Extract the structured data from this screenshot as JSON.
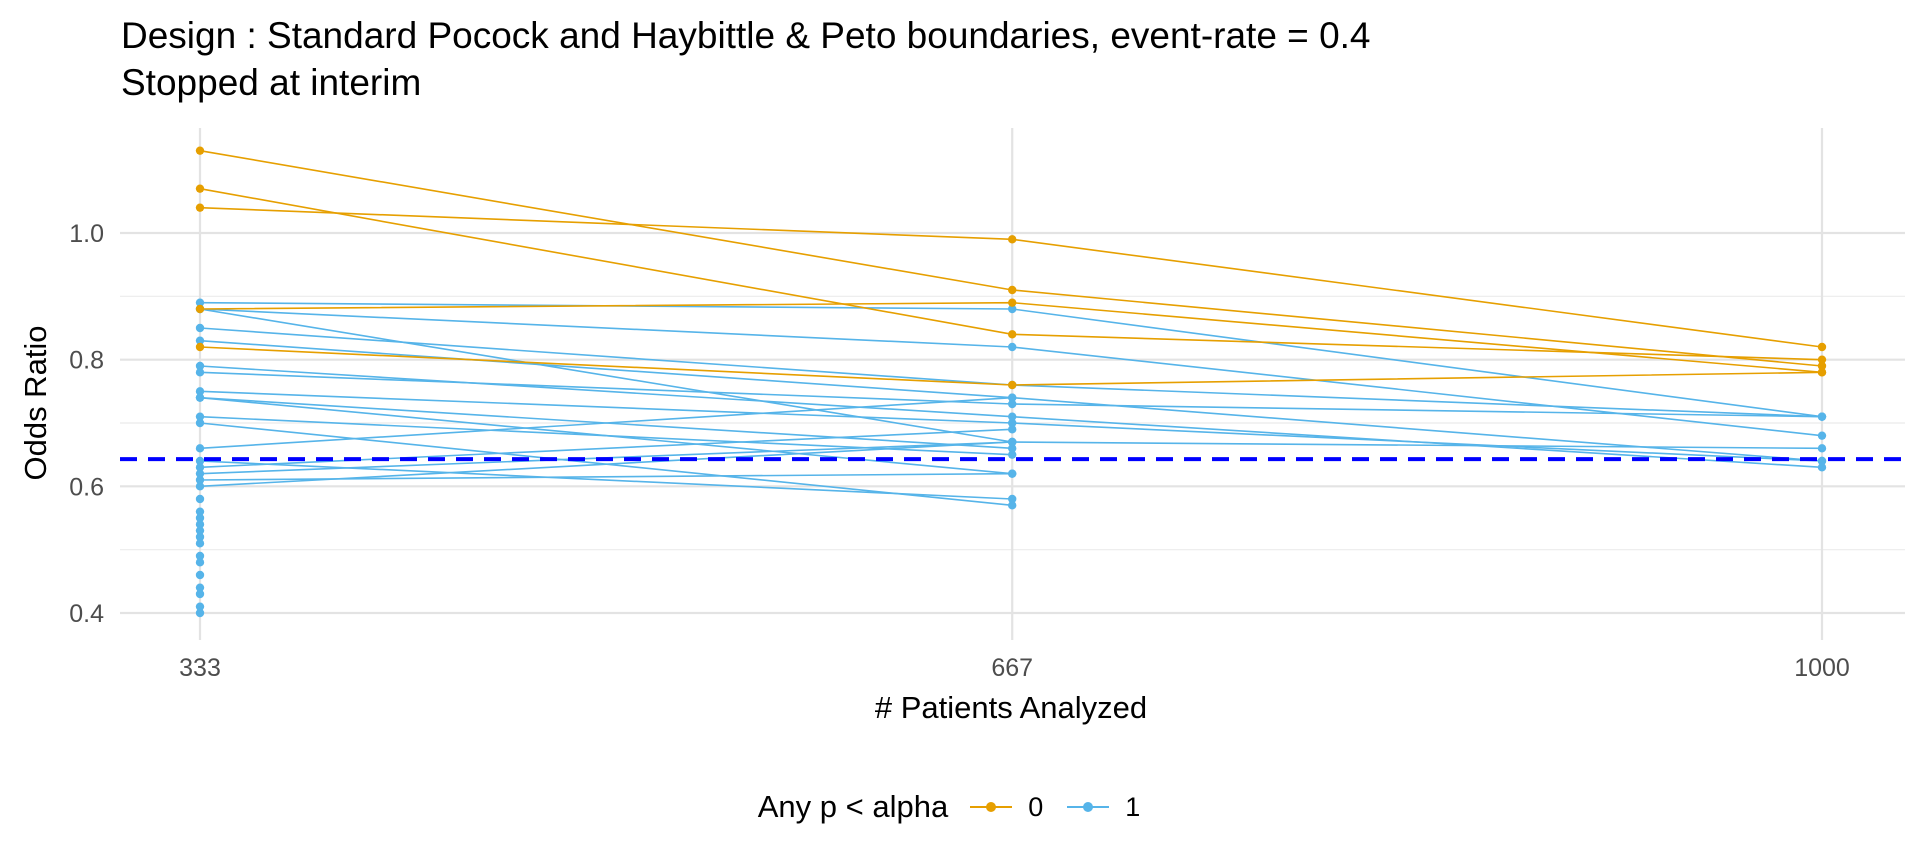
{
  "chart_data": {
    "type": "line",
    "title": "Design : Standard Pocock and Haybittle & Peto boundaries, event-rate = 0.4",
    "subtitle": "Stopped at interim",
    "xlabel": "# Patients Analyzed",
    "ylabel": "Odds Ratio",
    "x_ticks": [
      333,
      667,
      1000
    ],
    "y_ticks": [
      0.4,
      0.6,
      0.8,
      1.0
    ],
    "y_tick_labels": [
      "0.4",
      "0.6",
      "0.8",
      "1.0"
    ],
    "ylim": [
      0.38,
      1.15
    ],
    "xlim": [
      333,
      1000
    ],
    "grid": true,
    "reference_line": {
      "y": 0.643,
      "style": "dashed",
      "color": "#0000ff"
    },
    "legend": {
      "title": "Any p < alpha",
      "position": "bottom",
      "entries": [
        {
          "label": "0",
          "color": "#E69F00"
        },
        {
          "label": "1",
          "color": "#56B4E9"
        }
      ]
    },
    "series": [
      {
        "group": "0",
        "x": [
          333,
          667,
          1000
        ],
        "y": [
          1.13,
          0.91,
          0.79
        ]
      },
      {
        "group": "0",
        "x": [
          333,
          667,
          1000
        ],
        "y": [
          1.07,
          0.84,
          0.8
        ]
      },
      {
        "group": "0",
        "x": [
          333,
          667,
          1000
        ],
        "y": [
          1.04,
          0.99,
          0.82
        ]
      },
      {
        "group": "0",
        "x": [
          333,
          667,
          1000
        ],
        "y": [
          0.88,
          0.89,
          0.78
        ]
      },
      {
        "group": "0",
        "x": [
          333,
          667,
          1000
        ],
        "y": [
          0.82,
          0.76,
          0.78
        ]
      },
      {
        "group": "1",
        "x": [
          333,
          667,
          1000
        ],
        "y": [
          0.89,
          0.88,
          0.71
        ]
      },
      {
        "group": "1",
        "x": [
          333,
          667,
          1000
        ],
        "y": [
          0.88,
          0.82,
          0.68
        ]
      },
      {
        "group": "1",
        "x": [
          333,
          667,
          1000
        ],
        "y": [
          0.88,
          0.67,
          0.66
        ]
      },
      {
        "group": "1",
        "x": [
          333,
          667,
          1000
        ],
        "y": [
          0.85,
          0.76,
          0.71
        ]
      },
      {
        "group": "1",
        "x": [
          333,
          667,
          1000
        ],
        "y": [
          0.83,
          0.74,
          0.64
        ]
      },
      {
        "group": "1",
        "x": [
          333,
          667,
          1000
        ],
        "y": [
          0.79,
          0.71,
          0.63
        ]
      },
      {
        "group": "1",
        "x": [
          333,
          667,
          1000
        ],
        "y": [
          0.78,
          0.73,
          0.71
        ]
      },
      {
        "group": "1",
        "x": [
          333,
          667,
          1000
        ],
        "y": [
          0.75,
          0.7,
          0.64
        ]
      },
      {
        "group": "1",
        "x": [
          333,
          667
        ],
        "y": [
          0.74,
          0.66
        ]
      },
      {
        "group": "1",
        "x": [
          333,
          667
        ],
        "y": [
          0.74,
          0.62
        ]
      },
      {
        "group": "1",
        "x": [
          333,
          667
        ],
        "y": [
          0.71,
          0.65
        ]
      },
      {
        "group": "1",
        "x": [
          333,
          667
        ],
        "y": [
          0.7,
          0.57
        ]
      },
      {
        "group": "1",
        "x": [
          333,
          667
        ],
        "y": [
          0.66,
          0.74
        ]
      },
      {
        "group": "1",
        "x": [
          333,
          667
        ],
        "y": [
          0.64,
          0.58
        ]
      },
      {
        "group": "1",
        "x": [
          333,
          667
        ],
        "y": [
          0.63,
          0.69
        ]
      },
      {
        "group": "1",
        "x": [
          333,
          667
        ],
        "y": [
          0.62,
          0.67
        ]
      },
      {
        "group": "1",
        "x": [
          333,
          667
        ],
        "y": [
          0.61,
          0.62
        ]
      },
      {
        "group": "1",
        "x": [
          333,
          667
        ],
        "y": [
          0.6,
          0.67
        ]
      },
      {
        "group": "1",
        "x": [
          333
        ],
        "y": [
          0.58
        ]
      },
      {
        "group": "1",
        "x": [
          333
        ],
        "y": [
          0.56
        ]
      },
      {
        "group": "1",
        "x": [
          333
        ],
        "y": [
          0.55
        ]
      },
      {
        "group": "1",
        "x": [
          333
        ],
        "y": [
          0.54
        ]
      },
      {
        "group": "1",
        "x": [
          333
        ],
        "y": [
          0.53
        ]
      },
      {
        "group": "1",
        "x": [
          333
        ],
        "y": [
          0.52
        ]
      },
      {
        "group": "1",
        "x": [
          333
        ],
        "y": [
          0.51
        ]
      },
      {
        "group": "1",
        "x": [
          333
        ],
        "y": [
          0.49
        ]
      },
      {
        "group": "1",
        "x": [
          333
        ],
        "y": [
          0.48
        ]
      },
      {
        "group": "1",
        "x": [
          333
        ],
        "y": [
          0.46
        ]
      },
      {
        "group": "1",
        "x": [
          333
        ],
        "y": [
          0.44
        ]
      },
      {
        "group": "1",
        "x": [
          333
        ],
        "y": [
          0.43
        ]
      },
      {
        "group": "1",
        "x": [
          333
        ],
        "y": [
          0.41
        ]
      },
      {
        "group": "1",
        "x": [
          333
        ],
        "y": [
          0.4
        ]
      }
    ]
  }
}
